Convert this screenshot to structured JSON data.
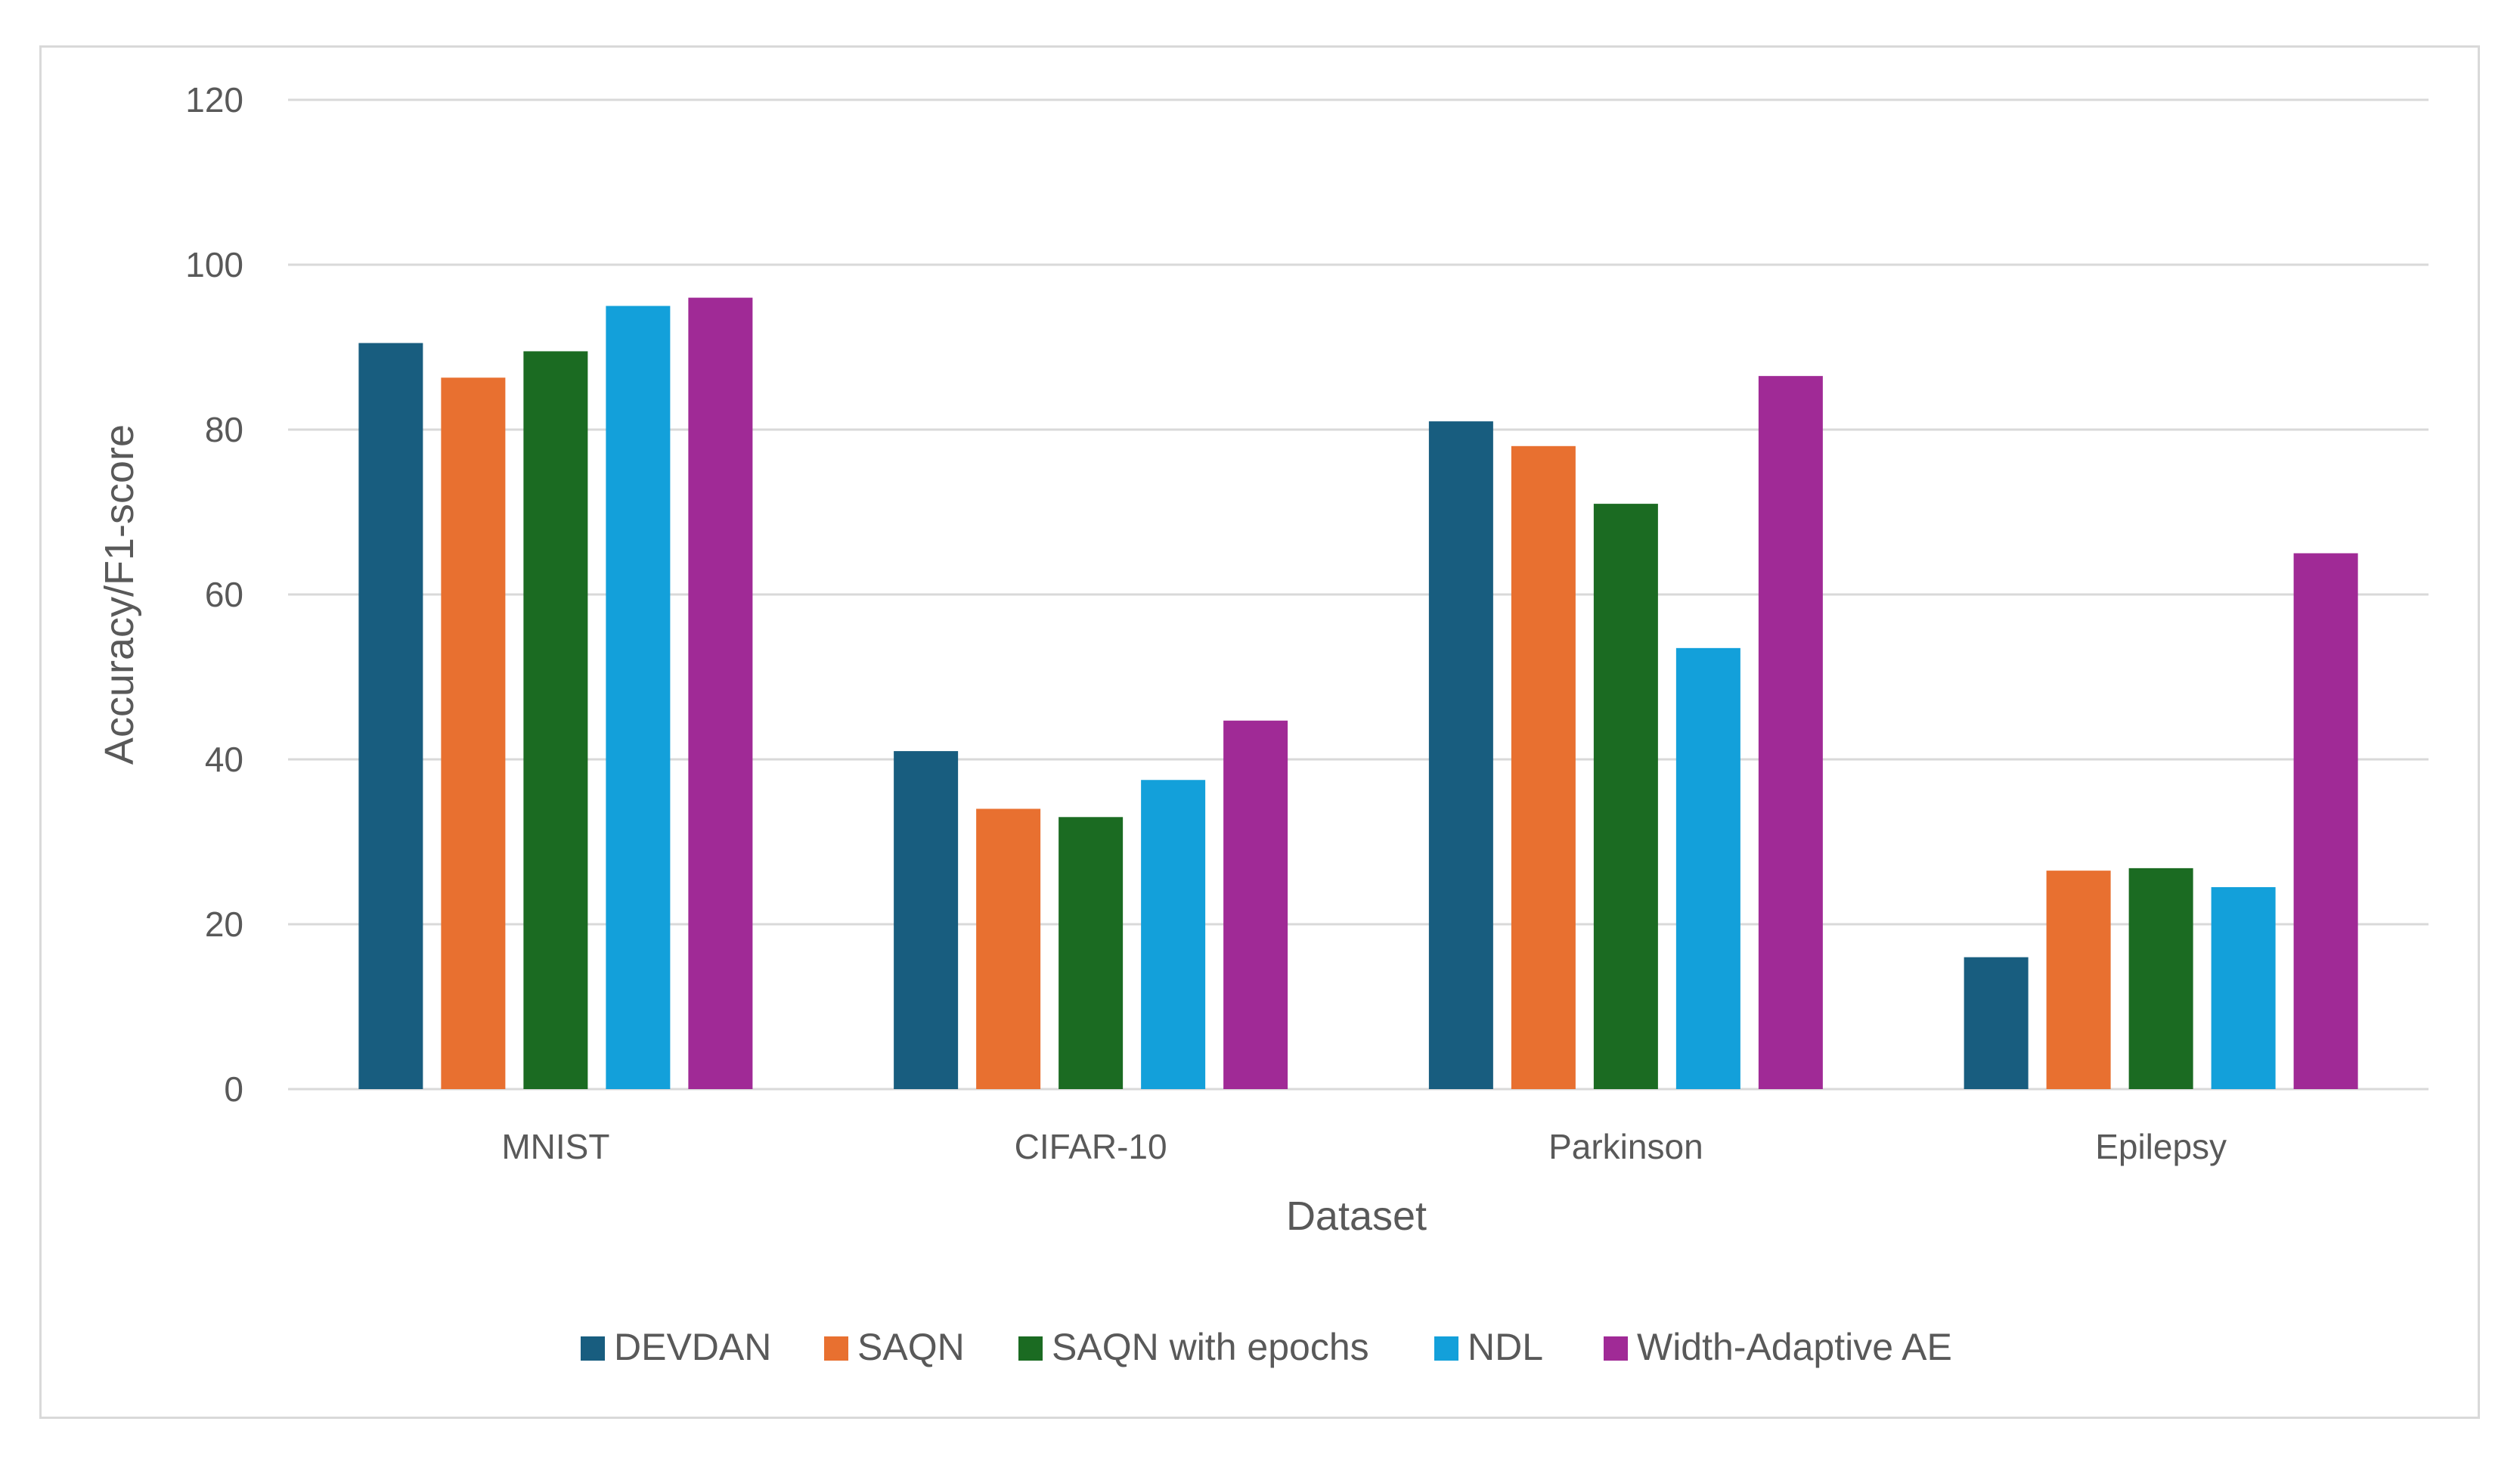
{
  "chart_data": {
    "type": "bar",
    "title": "",
    "xlabel": "Dataset",
    "ylabel": "Accuracy/F1-score",
    "ylim": [
      0,
      120
    ],
    "yticks": [
      0,
      20,
      40,
      60,
      80,
      100,
      120
    ],
    "grid": true,
    "legend_position": "bottom",
    "categories": [
      "MNIST",
      "CIFAR-10",
      "Parkinson",
      "Epilepsy"
    ],
    "series": [
      {
        "name": "DEVDAN",
        "color": "#185d7f",
        "values": [
          90.5,
          41,
          81,
          16
        ]
      },
      {
        "name": "SAQN",
        "color": "#e87030",
        "values": [
          86.3,
          34,
          78,
          26.5
        ]
      },
      {
        "name": "SAQN with epochs",
        "color": "#1b6b22",
        "values": [
          89.5,
          33,
          71,
          26.8
        ]
      },
      {
        "name": "NDL",
        "color": "#13a0da",
        "values": [
          95,
          37.5,
          53.5,
          24.5
        ]
      },
      {
        "name": "Width-Adaptive AE",
        "color": "#a02a96",
        "values": [
          96,
          44.7,
          86.5,
          65
        ]
      }
    ]
  }
}
